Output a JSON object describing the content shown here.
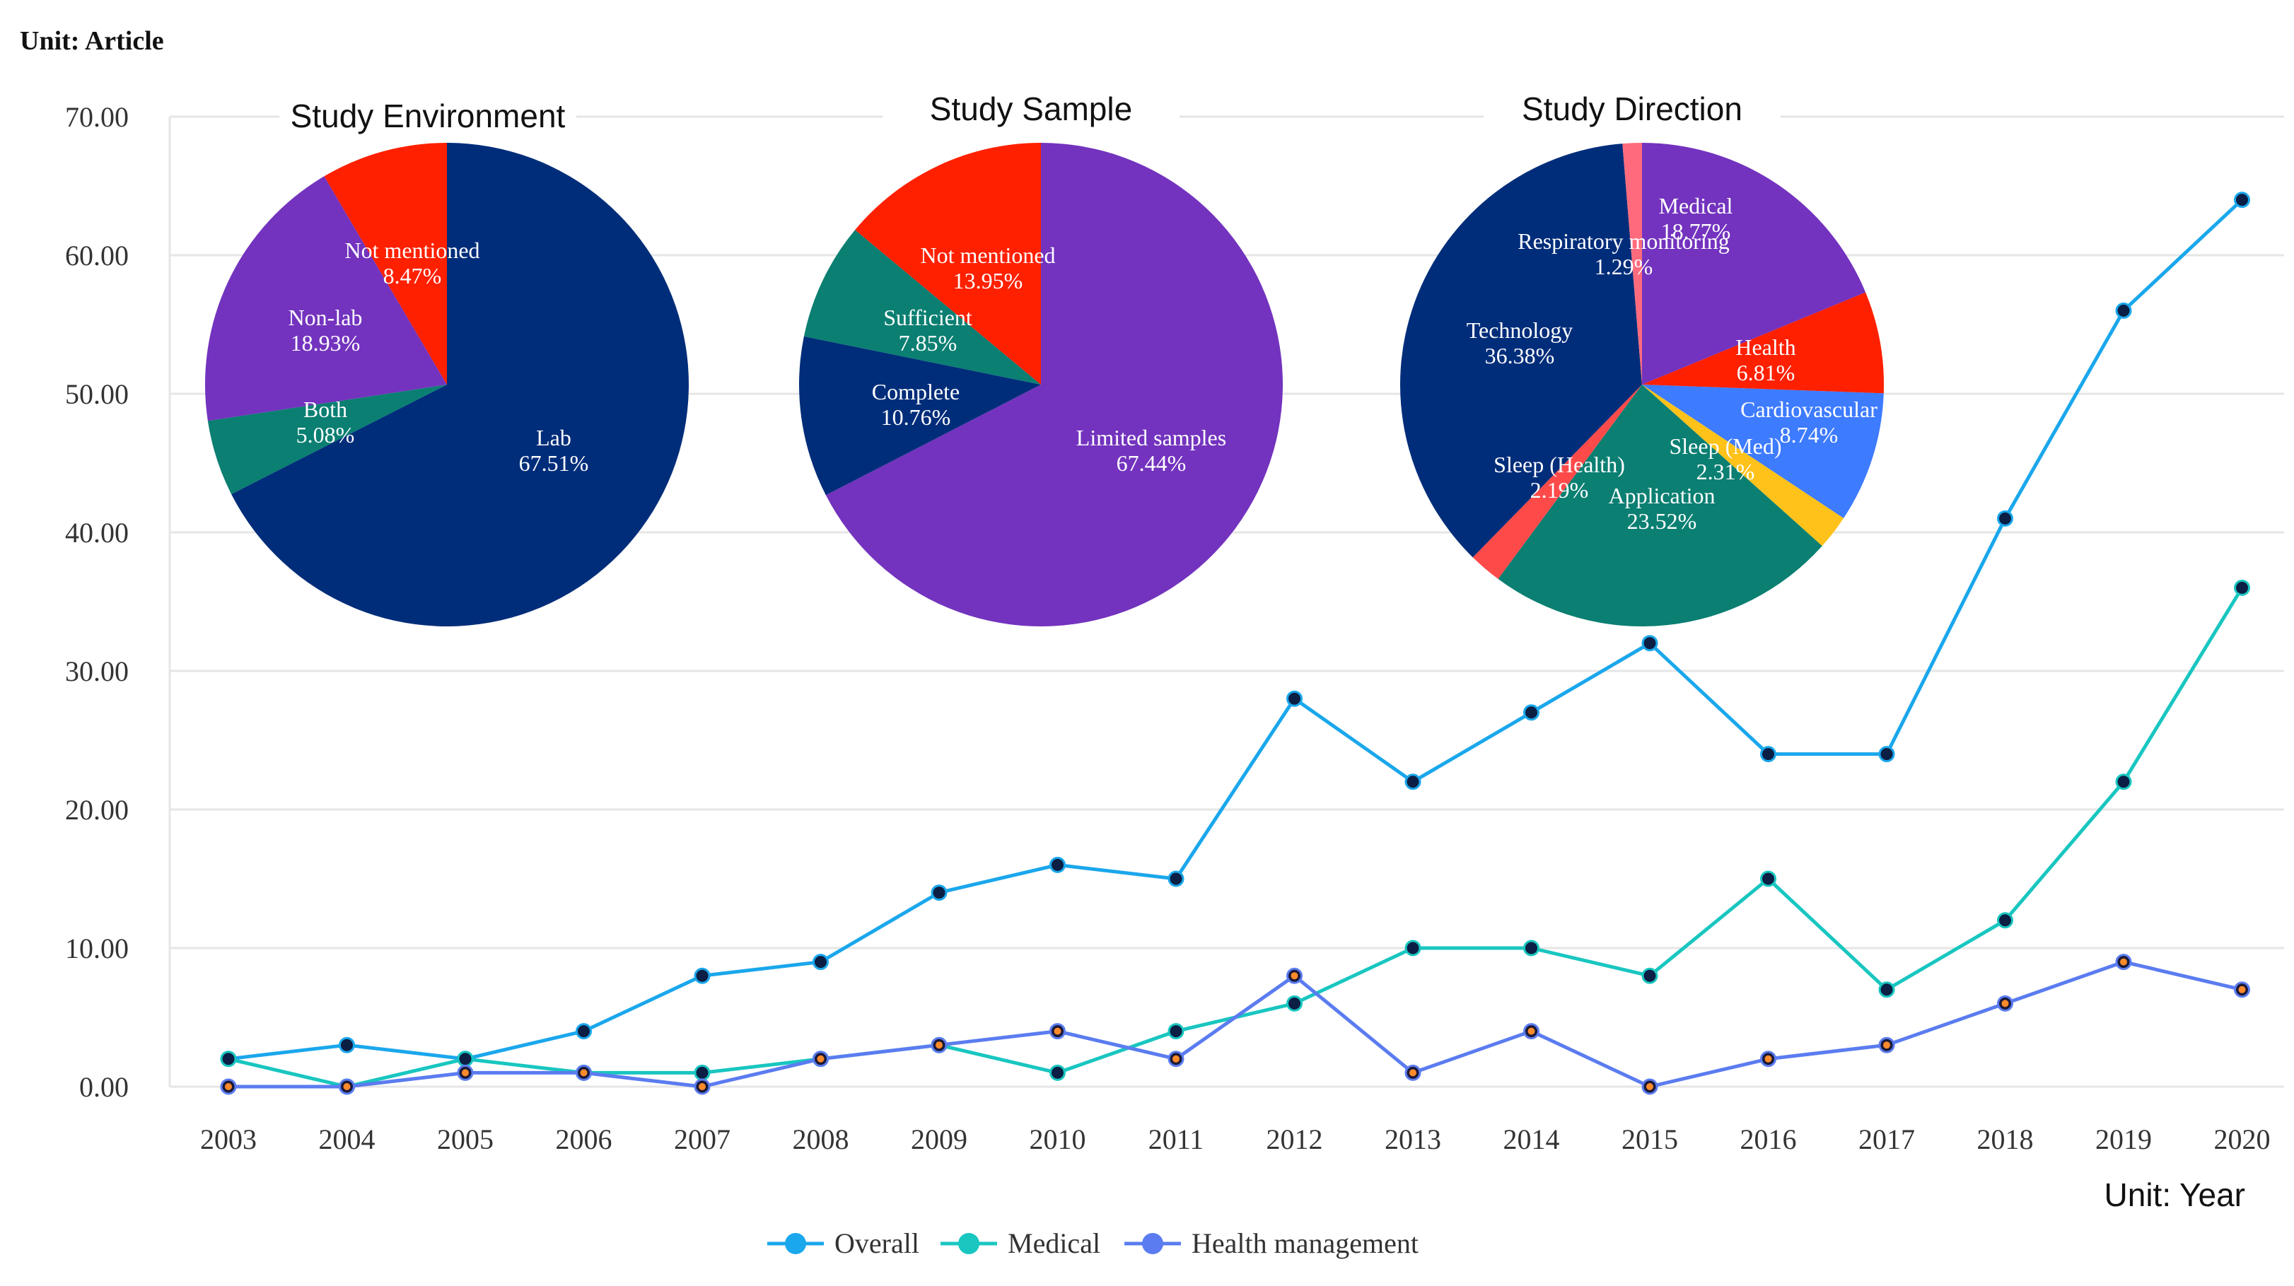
{
  "chart_data": [
    {
      "type": "line",
      "unit_y": "Unit: Article",
      "unit_x": "Unit: Year",
      "ylim": [
        0,
        70
      ],
      "yticks": [
        "0.00",
        "10.00",
        "20.00",
        "30.00",
        "40.00",
        "50.00",
        "60.00",
        "70.00"
      ],
      "grid": true,
      "legend_position": "bottom",
      "categories": [
        "2003",
        "2004",
        "2005",
        "2006",
        "2007",
        "2008",
        "2009",
        "2010",
        "2011",
        "2012",
        "2013",
        "2014",
        "2015",
        "2016",
        "2017",
        "2018",
        "2019",
        "2020"
      ],
      "series": [
        {
          "name": "Overall",
          "color": "#1aa7ec",
          "values": [
            2,
            3,
            2,
            4,
            8,
            9,
            14,
            16,
            15,
            28,
            22,
            27,
            32,
            24,
            24,
            41,
            56,
            64
          ]
        },
        {
          "name": "Medical",
          "color": "#19c6c0",
          "values": [
            2,
            0,
            2,
            1,
            1,
            2,
            3,
            1,
            4,
            6,
            10,
            10,
            8,
            15,
            7,
            12,
            22,
            36
          ]
        },
        {
          "name": "Health management",
          "color": "#5b7cf0",
          "values": [
            0,
            0,
            1,
            1,
            0,
            2,
            3,
            4,
            2,
            8,
            1,
            4,
            0,
            2,
            3,
            6,
            9,
            7
          ]
        }
      ]
    },
    {
      "type": "pie",
      "title": "Study Environment",
      "slices": [
        {
          "label": "Lab",
          "pct": "67.51%",
          "value": 67.51,
          "color": "#002d7a"
        },
        {
          "label": "Both",
          "pct": "5.08%",
          "value": 5.08,
          "color": "#0a7f72"
        },
        {
          "label": "Non-lab",
          "pct": "18.93%",
          "value": 18.93,
          "color": "#7333be"
        },
        {
          "label": "Not mentioned",
          "pct": "8.47%",
          "value": 8.47,
          "color": "#ff2000"
        }
      ]
    },
    {
      "type": "pie",
      "title": "Study Sample",
      "slices": [
        {
          "label": "Limited samples",
          "pct": "67.44%",
          "value": 67.44,
          "color": "#7333be"
        },
        {
          "label": "Complete",
          "pct": "10.76%",
          "value": 10.76,
          "color": "#002d7a"
        },
        {
          "label": "Sufficient",
          "pct": "7.85%",
          "value": 7.85,
          "color": "#0a7f72"
        },
        {
          "label": "Not mentioned",
          "pct": "13.95%",
          "value": 13.95,
          "color": "#ff2000"
        }
      ]
    },
    {
      "type": "pie",
      "title": "Study Direction",
      "slices": [
        {
          "label": "Medical",
          "pct": "18.77%",
          "value": 18.77,
          "color": "#7333be"
        },
        {
          "label": "Health",
          "pct": "6.81%",
          "value": 6.81,
          "color": "#ff2000"
        },
        {
          "label": "Cardiovascular",
          "pct": "8.74%",
          "value": 8.74,
          "color": "#3d7bff"
        },
        {
          "label": "Sleep (Med)",
          "pct": "2.31%",
          "value": 2.31,
          "color": "#ffc21a"
        },
        {
          "label": "Application",
          "pct": "23.52%",
          "value": 23.52,
          "color": "#0a7f72"
        },
        {
          "label": "Sleep (Health)",
          "pct": "2.19%",
          "value": 2.19,
          "color": "#ff4a4a"
        },
        {
          "label": "Technology",
          "pct": "36.38%",
          "value": 36.38,
          "color": "#002d7a"
        },
        {
          "label": "Respiratory monitoring",
          "pct": "1.29%",
          "value": 1.29,
          "color": "#ff6b7d"
        }
      ]
    }
  ]
}
